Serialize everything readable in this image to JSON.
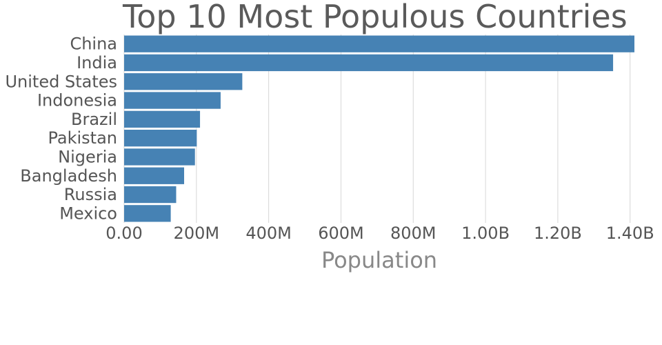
{
  "chart_data": {
    "type": "bar",
    "orientation": "horizontal",
    "title": "Top 10 Most Populous Countries",
    "xlabel": "Population",
    "ylabel": "",
    "categories": [
      "China",
      "India",
      "United States",
      "Indonesia",
      "Brazil",
      "Pakistan",
      "Nigeria",
      "Bangladesh",
      "Russia",
      "Mexico"
    ],
    "values": [
      1412000000,
      1353000000,
      327000000,
      267000000,
      210000000,
      201000000,
      196000000,
      166000000,
      144000000,
      129000000
    ],
    "xlim": [
      0,
      1412000000
    ],
    "x_ticks": [
      0,
      200000000,
      400000000,
      600000000,
      800000000,
      1000000000,
      1200000000,
      1400000000
    ],
    "x_tick_labels": [
      "0.00",
      "200M",
      "400M",
      "600M",
      "800M",
      "1.00B",
      "1.20B",
      "1.40B"
    ],
    "grid": "vertical",
    "legend": "none",
    "bar_color": "#4682b4"
  }
}
